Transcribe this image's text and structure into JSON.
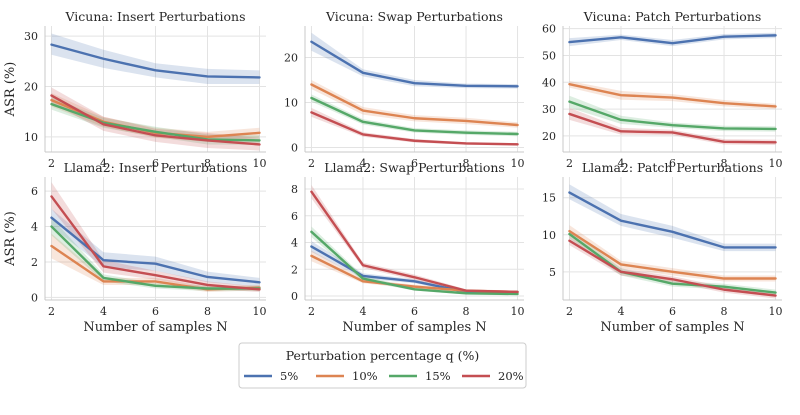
{
  "colors": {
    "5%": "#4c72b0",
    "10%": "#dd8452",
    "15%": "#55a868",
    "20%": "#c44e52",
    "grid": "#e3e3e3",
    "spine": "#c8c8c8"
  },
  "x_label": "Number of samples N",
  "y_label": "ASR (%)",
  "legend": {
    "title": "Perturbation percentage q (%)",
    "entries": [
      "5%",
      "10%",
      "15%",
      "20%"
    ]
  },
  "chart_data": [
    {
      "type": "line",
      "title": "Vicuna: Insert Perturbations",
      "x": [
        2,
        4,
        6,
        8,
        10
      ],
      "xticks": [
        2,
        4,
        6,
        8,
        10
      ],
      "ylim": [
        7,
        32
      ],
      "yticks": [
        10,
        20,
        30
      ],
      "series": [
        {
          "name": "5%",
          "values": [
            28.3,
            25.5,
            23.2,
            22.0,
            21.8
          ],
          "band": [
            [
              26.3,
              30.5
            ],
            [
              23.7,
              27.3
            ],
            [
              21.8,
              24.6
            ],
            [
              20.5,
              23.5
            ],
            [
              20.5,
              23.2
            ]
          ]
        },
        {
          "name": "10%",
          "values": [
            17.3,
            13.0,
            10.8,
            10.0,
            10.8
          ],
          "band": [
            [
              16.0,
              18.7
            ],
            [
              12.0,
              14.0
            ],
            [
              9.8,
              11.8
            ],
            [
              9.0,
              11.0
            ],
            [
              9.8,
              11.8
            ]
          ]
        },
        {
          "name": "15%",
          "values": [
            16.5,
            12.8,
            11.0,
            9.5,
            9.3
          ],
          "band": [
            [
              15.4,
              17.8
            ],
            [
              11.8,
              13.8
            ],
            [
              10.0,
              12.0
            ],
            [
              8.5,
              10.5
            ],
            [
              8.4,
              10.3
            ]
          ]
        },
        {
          "name": "20%",
          "values": [
            18.2,
            12.5,
            10.3,
            9.3,
            8.5
          ],
          "band": [
            [
              16.8,
              19.8
            ],
            [
              11.2,
              14.0
            ],
            [
              9.0,
              11.6
            ],
            [
              7.8,
              10.8
            ],
            [
              7.3,
              9.8
            ]
          ]
        }
      ]
    },
    {
      "type": "line",
      "title": "Vicuna: Swap Perturbations",
      "x": [
        2,
        4,
        6,
        8,
        10
      ],
      "xticks": [
        2,
        4,
        6,
        8,
        10
      ],
      "ylim": [
        -1,
        27
      ],
      "yticks": [
        0,
        10,
        20
      ],
      "series": [
        {
          "name": "5%",
          "values": [
            23.5,
            16.6,
            14.3,
            13.7,
            13.6
          ],
          "band": [
            [
              21.5,
              25.5
            ],
            [
              15.8,
              17.4
            ],
            [
              13.6,
              15.0
            ],
            [
              13.2,
              14.2
            ],
            [
              13.1,
              14.1
            ]
          ]
        },
        {
          "name": "10%",
          "values": [
            14.0,
            8.2,
            6.5,
            5.9,
            5.0
          ],
          "band": [
            [
              13.0,
              15.0
            ],
            [
              7.3,
              9.0
            ],
            [
              5.8,
              7.2
            ],
            [
              5.2,
              6.6
            ],
            [
              4.4,
              5.6
            ]
          ]
        },
        {
          "name": "15%",
          "values": [
            11.0,
            5.7,
            3.8,
            3.3,
            3.0
          ],
          "band": [
            [
              10.2,
              11.8
            ],
            [
              5.1,
              6.3
            ],
            [
              3.3,
              4.3
            ],
            [
              2.8,
              3.8
            ],
            [
              2.5,
              3.5
            ]
          ]
        },
        {
          "name": "20%",
          "values": [
            7.8,
            2.9,
            1.5,
            0.9,
            0.7
          ],
          "band": [
            [
              6.8,
              8.8
            ],
            [
              2.4,
              3.4
            ],
            [
              1.1,
              1.9
            ],
            [
              0.6,
              1.2
            ],
            [
              0.4,
              1.0
            ]
          ]
        }
      ]
    },
    {
      "type": "line",
      "title": "Vicuna: Patch Perturbations",
      "x": [
        2,
        4,
        6,
        8,
        10
      ],
      "xticks": [
        2,
        4,
        6,
        8,
        10
      ],
      "ylim": [
        14,
        61
      ],
      "yticks": [
        20,
        30,
        40,
        50,
        60
      ],
      "series": [
        {
          "name": "5%",
          "values": [
            55.0,
            56.8,
            54.6,
            57.0,
            57.5
          ],
          "band": [
            [
              53.5,
              56.5
            ],
            [
              55.8,
              57.8
            ],
            [
              53.5,
              55.8
            ],
            [
              56.0,
              58.0
            ],
            [
              56.5,
              58.5
            ]
          ]
        },
        {
          "name": "10%",
          "values": [
            39.3,
            35.2,
            34.3,
            32.2,
            31.0
          ],
          "band": [
            [
              38.0,
              40.5
            ],
            [
              33.5,
              36.8
            ],
            [
              33.0,
              35.6
            ],
            [
              31.0,
              33.4
            ],
            [
              30.0,
              32.0
            ]
          ]
        },
        {
          "name": "15%",
          "values": [
            32.8,
            26.0,
            24.0,
            22.8,
            22.6
          ],
          "band": [
            [
              30.5,
              35.0
            ],
            [
              24.5,
              27.5
            ],
            [
              23.0,
              25.0
            ],
            [
              21.8,
              23.8
            ],
            [
              21.6,
              23.6
            ]
          ]
        },
        {
          "name": "20%",
          "values": [
            28.2,
            21.7,
            21.3,
            17.8,
            17.6
          ],
          "band": [
            [
              26.0,
              30.5
            ],
            [
              20.5,
              23.0
            ],
            [
              20.3,
              22.3
            ],
            [
              16.8,
              18.8
            ],
            [
              16.6,
              18.6
            ]
          ]
        }
      ]
    },
    {
      "type": "line",
      "title": "Llama2: Insert Perturbations",
      "x": [
        2,
        4,
        6,
        8,
        10
      ],
      "xticks": [
        2,
        4,
        6,
        8,
        10
      ],
      "ylim": [
        -0.15,
        6.8
      ],
      "yticks": [
        0,
        2,
        4,
        6
      ],
      "series": [
        {
          "name": "5%",
          "values": [
            4.5,
            2.1,
            1.9,
            1.15,
            0.85
          ],
          "band": [
            [
              4.0,
              5.0
            ],
            [
              1.7,
              2.55
            ],
            [
              1.5,
              2.3
            ],
            [
              0.85,
              1.45
            ],
            [
              0.6,
              1.1
            ]
          ]
        },
        {
          "name": "10%",
          "values": [
            2.9,
            0.9,
            0.9,
            0.45,
            0.55
          ],
          "band": [
            [
              2.2,
              3.6
            ],
            [
              0.7,
              1.1
            ],
            [
              0.7,
              1.1
            ],
            [
              0.3,
              0.6
            ],
            [
              0.4,
              0.7
            ]
          ]
        },
        {
          "name": "15%",
          "values": [
            4.0,
            1.1,
            0.65,
            0.5,
            0.5
          ],
          "band": [
            [
              3.5,
              4.5
            ],
            [
              0.9,
              1.3
            ],
            [
              0.5,
              0.8
            ],
            [
              0.35,
              0.65
            ],
            [
              0.35,
              0.65
            ]
          ]
        },
        {
          "name": "20%",
          "values": [
            5.7,
            1.75,
            1.25,
            0.7,
            0.45
          ],
          "band": [
            [
              5.0,
              6.5
            ],
            [
              1.4,
              2.1
            ],
            [
              1.0,
              1.5
            ],
            [
              0.5,
              0.9
            ],
            [
              0.3,
              0.6
            ]
          ]
        }
      ]
    },
    {
      "type": "line",
      "title": "Llama2: Swap Perturbations",
      "x": [
        2,
        4,
        6,
        8,
        10
      ],
      "xticks": [
        2,
        4,
        6,
        8,
        10
      ],
      "ylim": [
        -0.3,
        8.9
      ],
      "yticks": [
        0,
        2,
        4,
        6,
        8
      ],
      "series": [
        {
          "name": "5%",
          "values": [
            3.7,
            1.5,
            1.1,
            0.3,
            0.3
          ],
          "band": [
            [
              3.3,
              4.1
            ],
            [
              1.3,
              1.7
            ],
            [
              0.95,
              1.25
            ],
            [
              0.2,
              0.4
            ],
            [
              0.2,
              0.4
            ]
          ]
        },
        {
          "name": "10%",
          "values": [
            3.0,
            1.1,
            0.7,
            0.4,
            0.3
          ],
          "band": [
            [
              2.6,
              3.4
            ],
            [
              0.95,
              1.25
            ],
            [
              0.55,
              0.85
            ],
            [
              0.3,
              0.5
            ],
            [
              0.2,
              0.4
            ]
          ]
        },
        {
          "name": "15%",
          "values": [
            4.8,
            1.3,
            0.5,
            0.2,
            0.15
          ],
          "band": [
            [
              4.4,
              5.2
            ],
            [
              1.1,
              1.5
            ],
            [
              0.4,
              0.6
            ],
            [
              0.1,
              0.3
            ],
            [
              0.05,
              0.25
            ]
          ]
        },
        {
          "name": "20%",
          "values": [
            7.8,
            2.3,
            1.4,
            0.4,
            0.3
          ],
          "band": [
            [
              7.3,
              8.3
            ],
            [
              2.1,
              2.5
            ],
            [
              1.2,
              1.6
            ],
            [
              0.3,
              0.5
            ],
            [
              0.2,
              0.4
            ]
          ]
        }
      ]
    },
    {
      "type": "line",
      "title": "Llama2: Patch Perturbations",
      "x": [
        2,
        4,
        6,
        8,
        10
      ],
      "xticks": [
        2,
        4,
        6,
        8,
        10
      ],
      "ylim": [
        1.2,
        17.8
      ],
      "yticks": [
        5,
        10,
        15
      ],
      "series": [
        {
          "name": "5%",
          "values": [
            15.7,
            11.9,
            10.4,
            8.3,
            8.3
          ],
          "band": [
            [
              14.8,
              16.8
            ],
            [
              11.2,
              12.8
            ],
            [
              9.6,
              11.2
            ],
            [
              7.8,
              8.8
            ],
            [
              7.8,
              8.8
            ]
          ]
        },
        {
          "name": "10%",
          "values": [
            10.5,
            6.0,
            5.0,
            4.1,
            4.1
          ],
          "band": [
            [
              9.8,
              11.3
            ],
            [
              5.5,
              6.5
            ],
            [
              4.5,
              5.5
            ],
            [
              3.7,
              4.5
            ],
            [
              3.7,
              4.5
            ]
          ]
        },
        {
          "name": "15%",
          "values": [
            10.1,
            5.0,
            3.4,
            3.0,
            2.2
          ],
          "band": [
            [
              9.5,
              10.7
            ],
            [
              4.5,
              5.5
            ],
            [
              3.0,
              3.8
            ],
            [
              2.6,
              3.4
            ],
            [
              1.8,
              2.6
            ]
          ]
        },
        {
          "name": "20%",
          "values": [
            9.2,
            5.0,
            4.0,
            2.6,
            1.8
          ],
          "band": [
            [
              8.6,
              9.8
            ],
            [
              4.5,
              5.5
            ],
            [
              3.6,
              4.4
            ],
            [
              2.2,
              3.0
            ],
            [
              1.4,
              2.2
            ]
          ]
        }
      ]
    }
  ]
}
